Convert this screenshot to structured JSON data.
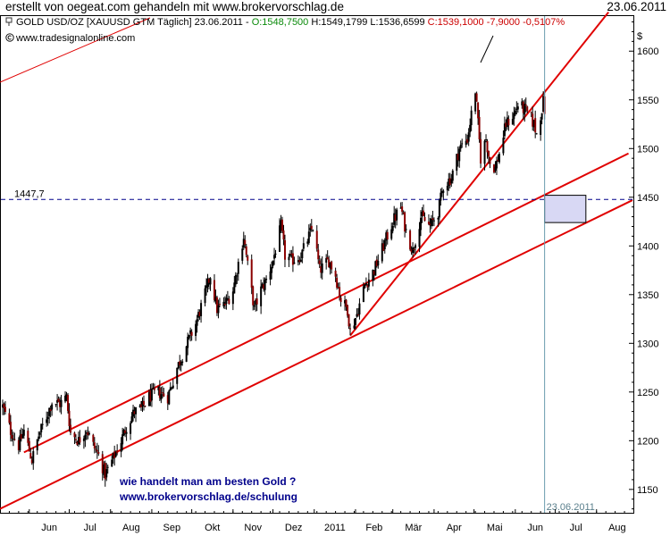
{
  "header": {
    "title": "erstellt von oegeat.com gehandeln mit www.brokervorschlag.de",
    "date": "23.06.2011"
  },
  "legend": {
    "instrument": "GOLD USD/OZ [XAUUSD GTM  Täglich] 23.06.2011 - ",
    "open": "O:1548,7500",
    "hl": " H:1549,1799 L:1536,6599 ",
    "close_change": "C:1539,1000 -7,9000 -0,5107%"
  },
  "source": "www.tradesignalonline.com",
  "annotations": {
    "line1": "wie handelt man am besten Gold ?",
    "line2": "www.brokervorschlag.de/schulung"
  },
  "colors": {
    "up": "#000000",
    "down": "#8b0000",
    "trend": "#e00000",
    "dashed": "#00008b",
    "box_fill": "#d8d8f4",
    "vline": "#6a9cae"
  },
  "chart_data": {
    "type": "candlestick",
    "currency_label": "$",
    "y_ticks": [
      1150,
      1200,
      1250,
      1300,
      1350,
      1400,
      1450,
      1500,
      1550,
      1600
    ],
    "ylim": [
      1126,
      1636
    ],
    "x_tick_labels": [
      "Jun",
      "Jul",
      "Aug",
      "Sep",
      "Okt",
      "Nov",
      "Dez",
      "2011",
      "Feb",
      "Mär",
      "Apr",
      "Mai",
      "Jun",
      "Jul",
      "Aug"
    ],
    "x_range": [
      "2010-05-10",
      "2011-08-28"
    ],
    "horizontal_level": {
      "value": 1447.7,
      "label": "1447,7"
    },
    "vertical_marker_label": "23.06.2011",
    "series_anchors": [
      [
        "2010-05-12",
        1235
      ],
      [
        "2010-05-18",
        1210
      ],
      [
        "2010-05-24",
        1195
      ],
      [
        "2010-05-28",
        1210
      ],
      [
        "2010-06-03",
        1180
      ],
      [
        "2010-06-08",
        1205
      ],
      [
        "2010-06-14",
        1225
      ],
      [
        "2010-06-18",
        1240
      ],
      [
        "2010-06-24",
        1238
      ],
      [
        "2010-06-29",
        1245
      ],
      [
        "2010-07-02",
        1208
      ],
      [
        "2010-07-08",
        1200
      ],
      [
        "2010-07-14",
        1212
      ],
      [
        "2010-07-19",
        1195
      ],
      [
        "2010-07-23",
        1185
      ],
      [
        "2010-07-28",
        1165
      ],
      [
        "2010-08-03",
        1182
      ],
      [
        "2010-08-09",
        1200
      ],
      [
        "2010-08-13",
        1215
      ],
      [
        "2010-08-19",
        1230
      ],
      [
        "2010-08-24",
        1232
      ],
      [
        "2010-08-30",
        1245
      ],
      [
        "2010-09-06",
        1250
      ],
      [
        "2010-09-13",
        1245
      ],
      [
        "2010-09-20",
        1275
      ],
      [
        "2010-09-27",
        1298
      ],
      [
        "2010-10-04",
        1320
      ],
      [
        "2010-10-11",
        1350
      ],
      [
        "2010-10-15",
        1370
      ],
      [
        "2010-10-20",
        1335
      ],
      [
        "2010-10-26",
        1340
      ],
      [
        "2010-11-01",
        1355
      ],
      [
        "2010-11-09",
        1410
      ],
      [
        "2010-11-12",
        1380
      ],
      [
        "2010-11-17",
        1335
      ],
      [
        "2010-11-22",
        1355
      ],
      [
        "2010-11-26",
        1365
      ],
      [
        "2010-12-01",
        1385
      ],
      [
        "2010-12-07",
        1420
      ],
      [
        "2010-12-10",
        1390
      ],
      [
        "2010-12-15",
        1385
      ],
      [
        "2010-12-22",
        1390
      ],
      [
        "2010-12-28",
        1410
      ],
      [
        "2010-12-31",
        1420
      ],
      [
        "2011-01-05",
        1375
      ],
      [
        "2011-01-12",
        1385
      ],
      [
        "2011-01-17",
        1370
      ],
      [
        "2011-01-21",
        1345
      ],
      [
        "2011-01-26",
        1335
      ],
      [
        "2011-01-28",
        1312
      ],
      [
        "2011-02-02",
        1330
      ],
      [
        "2011-02-08",
        1360
      ],
      [
        "2011-02-15",
        1375
      ],
      [
        "2011-02-22",
        1400
      ],
      [
        "2011-03-01",
        1425
      ],
      [
        "2011-03-07",
        1440
      ],
      [
        "2011-03-11",
        1415
      ],
      [
        "2011-03-16",
        1395
      ],
      [
        "2011-03-22",
        1430
      ],
      [
        "2011-03-29",
        1420
      ],
      [
        "2011-04-04",
        1435
      ],
      [
        "2011-04-08",
        1462
      ],
      [
        "2011-04-14",
        1470
      ],
      [
        "2011-04-20",
        1500
      ],
      [
        "2011-04-26",
        1510
      ],
      [
        "2011-05-02",
        1560
      ],
      [
        "2011-05-04",
        1525
      ],
      [
        "2011-05-06",
        1490
      ],
      [
        "2011-05-10",
        1510
      ],
      [
        "2011-05-13",
        1485
      ],
      [
        "2011-05-17",
        1480
      ],
      [
        "2011-05-20",
        1495
      ],
      [
        "2011-05-25",
        1525
      ],
      [
        "2011-05-31",
        1535
      ],
      [
        "2011-06-03",
        1545
      ],
      [
        "2011-06-08",
        1540
      ],
      [
        "2011-06-13",
        1530
      ],
      [
        "2011-06-15",
        1525
      ],
      [
        "2011-06-17",
        1515
      ],
      [
        "2011-06-20",
        1535
      ],
      [
        "2011-06-22",
        1548
      ],
      [
        "2011-06-23",
        1539
      ]
    ],
    "trendlines": [
      {
        "from": [
          "2010-05-28",
          1188
        ],
        "to": [
          "2011-08-25",
          1495
        ]
      },
      {
        "from": [
          "2011-01-28",
          1308
        ],
        "to": [
          "2011-08-10",
          1640
        ]
      },
      {
        "from": [
          "2010-05-10",
          1130
        ],
        "to": [
          "2011-08-28",
          1447
        ]
      }
    ],
    "box": {
      "from": "2011-06-23",
      "to": "2011-07-24",
      "low": 1424,
      "high": 1452
    }
  }
}
